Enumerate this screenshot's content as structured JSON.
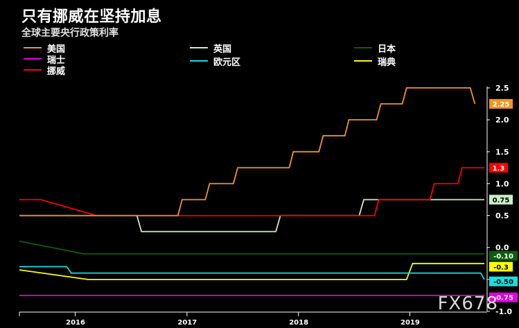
{
  "page": {
    "title": "只有挪威在坚持加息",
    "subtitle": "全球主要央行政策利率",
    "watermark": "FX678"
  },
  "colors": {
    "usa": "#F7931E",
    "uk": "#C8F0C8",
    "japan": "#0B5E0B",
    "swiss": "#E000E0",
    "euro": "#14E0E0",
    "sweden": "#FFFF00",
    "norway": "#FF0000"
  },
  "chart_data": {
    "type": "line",
    "title": "只有挪威在坚持加息",
    "subtitle": "全球主要央行政策利率",
    "ylim": [
      -1.0,
      2.5
    ],
    "yticks": [
      -1.0,
      -0.5,
      0.0,
      0.5,
      1.0,
      1.5,
      2.0,
      2.5
    ],
    "ytick_labels": [
      "-1.0",
      "-0.5",
      "0.0",
      "0.5",
      "1.0",
      "1.5",
      "2.0",
      "2.5"
    ],
    "xlim": [
      "2015-07-01",
      "2019-09-01"
    ],
    "xticks": [
      "2016-01-01",
      "2017-01-01",
      "2018-01-01",
      "2019-01-01"
    ],
    "xtick_labels": [
      "2016",
      "2017",
      "2018",
      "2019"
    ],
    "x_year_ticks": [
      "2015-12-31",
      "2016-12-31",
      "2017-12-31",
      "2018-12-31"
    ],
    "legend_position": "top",
    "series": [
      {
        "name": "美国",
        "color_key": "usa",
        "end_label": "2.25",
        "points": [
          [
            "2015-07-01",
            0.5
          ],
          [
            "2015-12-16",
            0.5
          ],
          [
            "2016-12-01",
            0.5
          ],
          [
            "2016-12-15",
            0.75
          ],
          [
            "2017-03-01",
            0.75
          ],
          [
            "2017-03-15",
            1.0
          ],
          [
            "2017-06-01",
            1.0
          ],
          [
            "2017-06-15",
            1.25
          ],
          [
            "2017-12-01",
            1.25
          ],
          [
            "2017-12-14",
            1.5
          ],
          [
            "2018-03-08",
            1.5
          ],
          [
            "2018-03-22",
            1.75
          ],
          [
            "2018-06-01",
            1.75
          ],
          [
            "2018-06-14",
            2.0
          ],
          [
            "2018-09-13",
            2.0
          ],
          [
            "2018-09-27",
            2.25
          ],
          [
            "2018-12-06",
            2.25
          ],
          [
            "2018-12-20",
            2.5
          ],
          [
            "2019-07-17",
            2.5
          ],
          [
            "2019-08-01",
            2.25
          ]
        ]
      },
      {
        "name": "英国",
        "color_key": "uk",
        "end_label": "0.75",
        "points": [
          [
            "2015-07-01",
            0.5
          ],
          [
            "2016-07-20",
            0.5
          ],
          [
            "2016-08-04",
            0.25
          ],
          [
            "2017-10-18",
            0.25
          ],
          [
            "2017-11-02",
            0.5
          ],
          [
            "2018-07-18",
            0.5
          ],
          [
            "2018-08-02",
            0.75
          ],
          [
            "2019-09-01",
            0.75
          ]
        ]
      },
      {
        "name": "日本",
        "color_key": "japan",
        "end_label": "-0.10",
        "points": [
          [
            "2015-07-01",
            0.1
          ],
          [
            "2016-01-29",
            -0.1
          ],
          [
            "2019-09-01",
            -0.1
          ]
        ]
      },
      {
        "name": "瑞士",
        "color_key": "swiss",
        "end_label": "-0.75",
        "points": [
          [
            "2015-07-01",
            -0.75
          ],
          [
            "2019-09-01",
            -0.75
          ]
        ]
      },
      {
        "name": "欧元区",
        "color_key": "euro",
        "end_label": "-0.50",
        "points": [
          [
            "2015-07-01",
            -0.3
          ],
          [
            "2015-12-03",
            -0.3
          ],
          [
            "2015-12-18",
            -0.4
          ],
          [
            "2019-08-20",
            -0.4
          ],
          [
            "2019-09-01",
            -0.5
          ]
        ]
      },
      {
        "name": "瑞典",
        "color_key": "sweden",
        "end_label": "-0.3",
        "points": [
          [
            "2015-07-01",
            -0.35
          ],
          [
            "2016-02-11",
            -0.5
          ],
          [
            "2018-12-20",
            -0.5
          ],
          [
            "2019-01-09",
            -0.25
          ],
          [
            "2019-09-01",
            -0.25
          ]
        ]
      },
      {
        "name": "挪威",
        "color_key": "norway",
        "end_label": "1.3",
        "points": [
          [
            "2015-07-01",
            0.75
          ],
          [
            "2015-09-10",
            0.75
          ],
          [
            "2016-03-10",
            0.5
          ],
          [
            "2018-09-06",
            0.5
          ],
          [
            "2018-09-20",
            0.75
          ],
          [
            "2019-03-07",
            0.75
          ],
          [
            "2019-03-21",
            1.0
          ],
          [
            "2019-06-06",
            1.0
          ],
          [
            "2019-06-20",
            1.25
          ],
          [
            "2019-09-01",
            1.25
          ]
        ]
      }
    ]
  }
}
